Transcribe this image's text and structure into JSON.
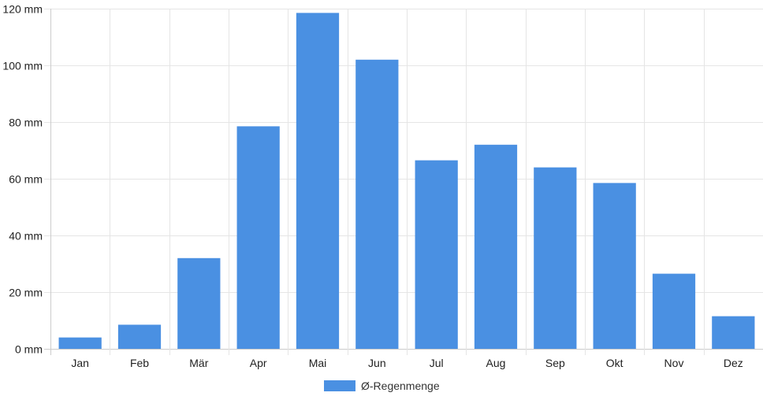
{
  "chart_data": {
    "type": "bar",
    "categories": [
      "Jan",
      "Feb",
      "Mär",
      "Apr",
      "Mai",
      "Jun",
      "Jul",
      "Aug",
      "Sep",
      "Okt",
      "Nov",
      "Dez"
    ],
    "series": [
      {
        "name": "Ø-Regenmenge",
        "values": [
          4,
          8.5,
          32,
          78.5,
          118.5,
          102,
          66.5,
          72,
          64,
          58.5,
          26.5,
          11.5
        ],
        "color": "#4a90e2"
      }
    ],
    "y_ticks": [
      0,
      20,
      40,
      60,
      80,
      100,
      120
    ],
    "y_tick_suffix": " mm",
    "ylim": [
      0,
      120
    ],
    "grid": true,
    "legend": "bottom-center",
    "gridColor": "#e5e5e5",
    "axisColor": "#cccccc"
  }
}
